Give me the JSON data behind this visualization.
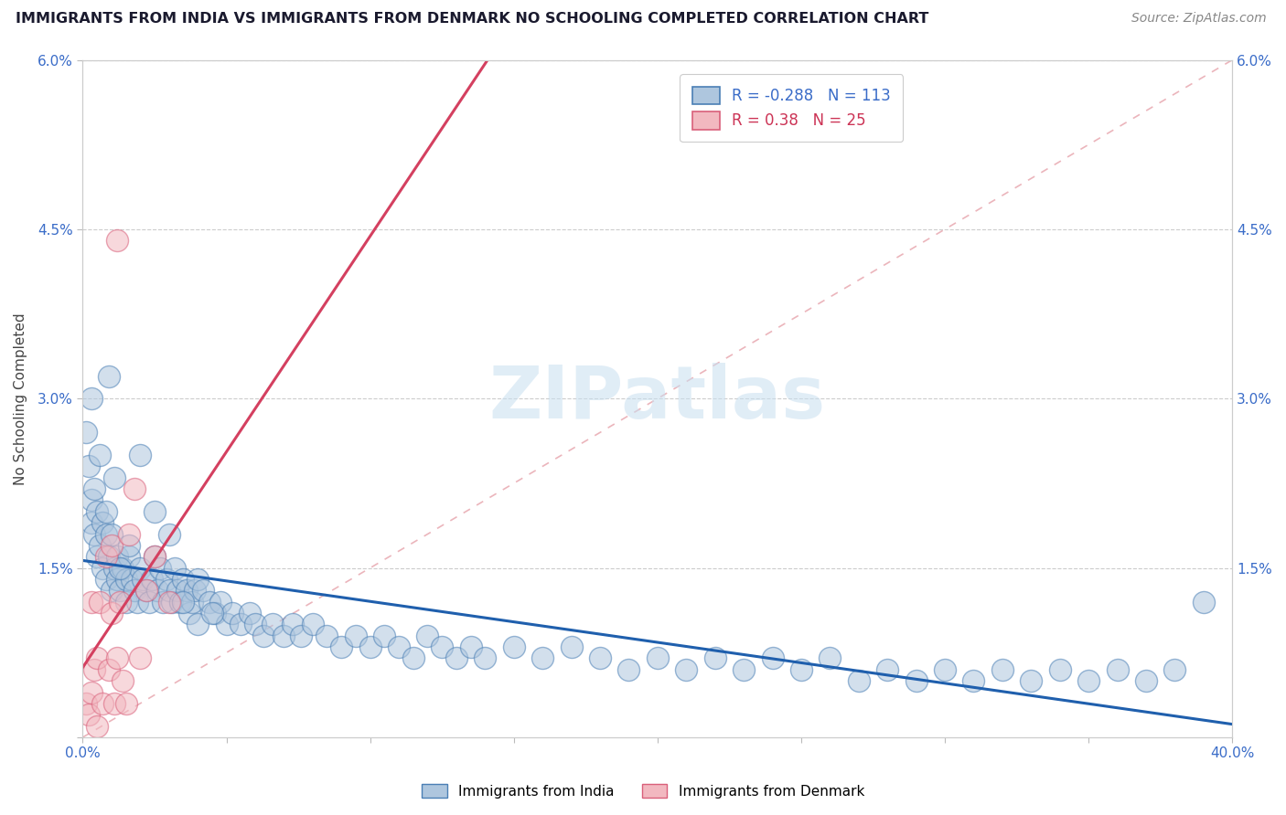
{
  "title": "IMMIGRANTS FROM INDIA VS IMMIGRANTS FROM DENMARK NO SCHOOLING COMPLETED CORRELATION CHART",
  "source_text": "Source: ZipAtlas.com",
  "ylabel": "No Schooling Completed",
  "xlim": [
    0.0,
    0.4
  ],
  "ylim": [
    0.0,
    0.06
  ],
  "xticks": [
    0.0,
    0.05,
    0.1,
    0.15,
    0.2,
    0.25,
    0.3,
    0.35,
    0.4
  ],
  "yticks": [
    0.0,
    0.015,
    0.03,
    0.045,
    0.06
  ],
  "xticklabels_show": [
    "0.0%",
    "40.0%"
  ],
  "yticklabels_show": [
    "1.5%",
    "3.0%",
    "4.5%",
    "6.0%"
  ],
  "india_face_color": "#AEC6DE",
  "india_edge_color": "#4A7FB5",
  "denmark_face_color": "#F2B8C0",
  "denmark_edge_color": "#D95F7A",
  "india_line_color": "#1F5FAD",
  "denmark_line_color": "#D44060",
  "diag_color": "#E8A0A8",
  "india_R": -0.288,
  "india_N": 113,
  "denmark_R": 0.38,
  "denmark_N": 25,
  "watermark_text": "ZIPatlas",
  "legend_india": "Immigrants from India",
  "legend_denmark": "Immigrants from Denmark",
  "india_x": [
    0.001,
    0.002,
    0.003,
    0.003,
    0.004,
    0.005,
    0.005,
    0.006,
    0.007,
    0.007,
    0.008,
    0.008,
    0.009,
    0.01,
    0.01,
    0.011,
    0.012,
    0.012,
    0.013,
    0.014,
    0.015,
    0.015,
    0.016,
    0.017,
    0.018,
    0.019,
    0.02,
    0.021,
    0.022,
    0.023,
    0.024,
    0.025,
    0.026,
    0.027,
    0.028,
    0.029,
    0.03,
    0.031,
    0.032,
    0.033,
    0.034,
    0.035,
    0.036,
    0.037,
    0.038,
    0.039,
    0.04,
    0.042,
    0.044,
    0.046,
    0.048,
    0.05,
    0.052,
    0.055,
    0.058,
    0.06,
    0.063,
    0.066,
    0.07,
    0.073,
    0.076,
    0.08,
    0.085,
    0.09,
    0.095,
    0.1,
    0.105,
    0.11,
    0.115,
    0.12,
    0.125,
    0.13,
    0.135,
    0.14,
    0.15,
    0.16,
    0.17,
    0.18,
    0.19,
    0.2,
    0.21,
    0.22,
    0.23,
    0.24,
    0.25,
    0.26,
    0.27,
    0.28,
    0.29,
    0.3,
    0.31,
    0.32,
    0.33,
    0.34,
    0.35,
    0.36,
    0.37,
    0.38,
    0.39,
    0.006,
    0.004,
    0.003,
    0.008,
    0.009,
    0.011,
    0.013,
    0.016,
    0.02,
    0.025,
    0.03,
    0.035,
    0.04,
    0.045
  ],
  "india_y": [
    0.027,
    0.024,
    0.021,
    0.019,
    0.018,
    0.016,
    0.02,
    0.017,
    0.015,
    0.019,
    0.018,
    0.014,
    0.016,
    0.018,
    0.013,
    0.015,
    0.014,
    0.016,
    0.013,
    0.015,
    0.014,
    0.012,
    0.016,
    0.014,
    0.013,
    0.012,
    0.015,
    0.014,
    0.013,
    0.012,
    0.014,
    0.016,
    0.013,
    0.015,
    0.012,
    0.014,
    0.013,
    0.012,
    0.015,
    0.013,
    0.012,
    0.014,
    0.013,
    0.011,
    0.012,
    0.013,
    0.014,
    0.013,
    0.012,
    0.011,
    0.012,
    0.01,
    0.011,
    0.01,
    0.011,
    0.01,
    0.009,
    0.01,
    0.009,
    0.01,
    0.009,
    0.01,
    0.009,
    0.008,
    0.009,
    0.008,
    0.009,
    0.008,
    0.007,
    0.009,
    0.008,
    0.007,
    0.008,
    0.007,
    0.008,
    0.007,
    0.008,
    0.007,
    0.006,
    0.007,
    0.006,
    0.007,
    0.006,
    0.007,
    0.006,
    0.007,
    0.005,
    0.006,
    0.005,
    0.006,
    0.005,
    0.006,
    0.005,
    0.006,
    0.005,
    0.006,
    0.005,
    0.006,
    0.012,
    0.025,
    0.022,
    0.03,
    0.02,
    0.032,
    0.023,
    0.015,
    0.017,
    0.025,
    0.02,
    0.018,
    0.012,
    0.01,
    0.011
  ],
  "denmark_x": [
    0.001,
    0.002,
    0.003,
    0.003,
    0.004,
    0.005,
    0.005,
    0.006,
    0.007,
    0.008,
    0.009,
    0.01,
    0.01,
    0.011,
    0.012,
    0.012,
    0.013,
    0.014,
    0.015,
    0.016,
    0.018,
    0.02,
    0.022,
    0.025,
    0.03
  ],
  "denmark_y": [
    0.003,
    0.002,
    0.012,
    0.004,
    0.006,
    0.001,
    0.007,
    0.012,
    0.003,
    0.016,
    0.006,
    0.011,
    0.017,
    0.003,
    0.007,
    0.044,
    0.012,
    0.005,
    0.003,
    0.018,
    0.022,
    0.007,
    0.013,
    0.016,
    0.012
  ]
}
